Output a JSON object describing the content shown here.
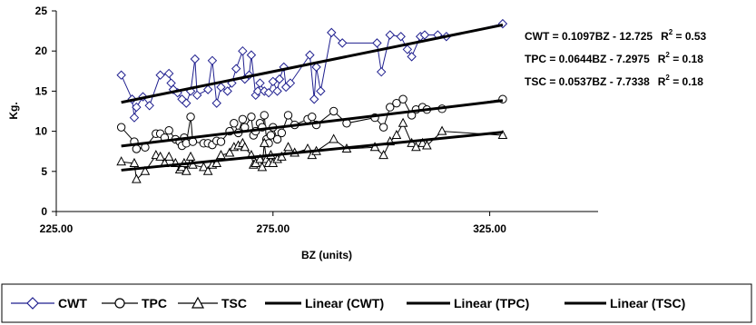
{
  "chart_data": {
    "type": "line",
    "xlabel": "BZ (units)",
    "ylabel": "Kg.",
    "xlim": [
      225,
      350
    ],
    "ylim": [
      0,
      25
    ],
    "x_ticks": [
      "225.00",
      "275.00",
      "325.00"
    ],
    "y_ticks": [
      "0",
      "5",
      "10",
      "15",
      "20",
      "25"
    ],
    "grid": false,
    "legend_position": "bottom",
    "series": [
      {
        "name": "CWT",
        "marker": "diamond",
        "color": "#1F1F8F",
        "points": [
          [
            240,
            17
          ],
          [
            242.5,
            14
          ],
          [
            243,
            11.7
          ],
          [
            243.5,
            13
          ],
          [
            245,
            14.3
          ],
          [
            246.5,
            13.2
          ],
          [
            249,
            17
          ],
          [
            251,
            17.2
          ],
          [
            251.5,
            16
          ],
          [
            252,
            15.2
          ],
          [
            253,
            14.8
          ],
          [
            254,
            14
          ],
          [
            255,
            13.5
          ],
          [
            256,
            15
          ],
          [
            257,
            19
          ],
          [
            257.5,
            14.5
          ],
          [
            260,
            15.2
          ],
          [
            261,
            18.8
          ],
          [
            262,
            13.5
          ],
          [
            263,
            15.5
          ],
          [
            264.5,
            15
          ],
          [
            265.5,
            16
          ],
          [
            266.5,
            17.8
          ],
          [
            268,
            20
          ],
          [
            268.5,
            16.5
          ],
          [
            269.5,
            17
          ],
          [
            270,
            19.5
          ],
          [
            271,
            14.5
          ],
          [
            271.5,
            15
          ],
          [
            272,
            16
          ],
          [
            273,
            15
          ],
          [
            274,
            14.8
          ],
          [
            275,
            16.2
          ],
          [
            276,
            15
          ],
          [
            276.5,
            16.5
          ],
          [
            277.5,
            18
          ],
          [
            278,
            15.5
          ],
          [
            279,
            16
          ],
          [
            283.5,
            19.5
          ],
          [
            284.5,
            14
          ],
          [
            285,
            18
          ],
          [
            286,
            15
          ],
          [
            288.5,
            22.3
          ],
          [
            291,
            21
          ],
          [
            299,
            21
          ],
          [
            300,
            17.4
          ],
          [
            302,
            22
          ],
          [
            304.5,
            21.8
          ],
          [
            306,
            20.2
          ],
          [
            307,
            19.3
          ],
          [
            309,
            21.8
          ],
          [
            310,
            22
          ],
          [
            313,
            22
          ],
          [
            315,
            21.8
          ],
          [
            328,
            23.4
          ]
        ]
      },
      {
        "name": "TPC",
        "marker": "circle",
        "color": "#000000",
        "points": [
          [
            240,
            10.5
          ],
          [
            243,
            8.7
          ],
          [
            243.5,
            7.8
          ],
          [
            245.5,
            8
          ],
          [
            248,
            9.7
          ],
          [
            249,
            9.7
          ],
          [
            250,
            9.2
          ],
          [
            251,
            10.1
          ],
          [
            252.5,
            9
          ],
          [
            253.5,
            8.7
          ],
          [
            254,
            8.2
          ],
          [
            254.5,
            9.2
          ],
          [
            255,
            8.5
          ],
          [
            256,
            11.8
          ],
          [
            256.5,
            8.7
          ],
          [
            259,
            8.5
          ],
          [
            260,
            8.5
          ],
          [
            261,
            8.3
          ],
          [
            262,
            8.8
          ],
          [
            263,
            8.7
          ],
          [
            265,
            10
          ],
          [
            266,
            11
          ],
          [
            267,
            9.8
          ],
          [
            268,
            11.5
          ],
          [
            268.5,
            10.5
          ],
          [
            270,
            11.8
          ],
          [
            270.5,
            9.5
          ],
          [
            271,
            10
          ],
          [
            272,
            11
          ],
          [
            272.5,
            10.5
          ],
          [
            273,
            12
          ],
          [
            273.5,
            9
          ],
          [
            274,
            8.5
          ],
          [
            274.5,
            9.5
          ],
          [
            275,
            10.5
          ],
          [
            276,
            9
          ],
          [
            277,
            9.8
          ],
          [
            278.5,
            12
          ],
          [
            280,
            10.8
          ],
          [
            283,
            11.5
          ],
          [
            284,
            11.8
          ],
          [
            285,
            10.8
          ],
          [
            289,
            12.5
          ],
          [
            292,
            11
          ],
          [
            298.5,
            11.7
          ],
          [
            300.5,
            10.5
          ],
          [
            302,
            13
          ],
          [
            303.5,
            13.5
          ],
          [
            305,
            14
          ],
          [
            307,
            12
          ],
          [
            308,
            12.7
          ],
          [
            309.5,
            13
          ],
          [
            310.5,
            12.7
          ],
          [
            314,
            12.8
          ],
          [
            328,
            14
          ]
        ]
      },
      {
        "name": "TSC",
        "marker": "triangle",
        "color": "#000000",
        "points": [
          [
            240,
            6.2
          ],
          [
            243,
            6
          ],
          [
            243.5,
            4
          ],
          [
            245.5,
            5
          ],
          [
            248,
            7
          ],
          [
            249,
            6.8
          ],
          [
            250,
            6
          ],
          [
            251,
            6.8
          ],
          [
            252.5,
            6
          ],
          [
            253.5,
            5.2
          ],
          [
            254,
            5.5
          ],
          [
            254.5,
            6
          ],
          [
            255,
            5
          ],
          [
            256,
            6.8
          ],
          [
            256.5,
            5.8
          ],
          [
            259,
            5.5
          ],
          [
            260,
            5
          ],
          [
            261,
            5.8
          ],
          [
            262,
            6
          ],
          [
            263,
            7
          ],
          [
            265,
            7.3
          ],
          [
            266,
            8
          ],
          [
            267,
            8.2
          ],
          [
            268,
            8.5
          ],
          [
            268.5,
            8
          ],
          [
            270,
            7
          ],
          [
            270.5,
            5.8
          ],
          [
            271,
            6
          ],
          [
            272,
            6.5
          ],
          [
            272.5,
            5.5
          ],
          [
            273,
            8.5
          ],
          [
            273.5,
            6.5
          ],
          [
            274,
            6
          ],
          [
            274.5,
            7
          ],
          [
            275,
            6
          ],
          [
            276,
            6.5
          ],
          [
            277,
            6.8
          ],
          [
            278.5,
            8
          ],
          [
            280,
            7.3
          ],
          [
            283,
            7.8
          ],
          [
            284,
            7
          ],
          [
            285,
            7.5
          ],
          [
            289,
            9
          ],
          [
            292,
            7.8
          ],
          [
            298.5,
            8
          ],
          [
            300.5,
            7
          ],
          [
            302,
            8.7
          ],
          [
            303.5,
            9.5
          ],
          [
            305,
            11
          ],
          [
            307,
            8.5
          ],
          [
            308,
            8
          ],
          [
            309.5,
            8.5
          ],
          [
            310.5,
            8.2
          ],
          [
            314,
            10
          ],
          [
            328,
            9.5
          ]
        ]
      }
    ],
    "trendlines": [
      {
        "name": "Linear (CWT)",
        "label": "CWT = 0.1097BZ - 12.725",
        "r2_label": "R",
        "r2_value": " = 0.53",
        "slope": 0.1097,
        "intercept": -12.725,
        "x_range": [
          240,
          328
        ]
      },
      {
        "name": "Linear (TPC)",
        "label": "TPC = 0.0644BZ - 7.2975",
        "r2_label": "R",
        "r2_value": " = 0.18",
        "slope": 0.0644,
        "intercept": -7.2975,
        "x_range": [
          240,
          328
        ]
      },
      {
        "name": "Linear (TSC)",
        "label": "TSC = 0.0537BZ - 7.7338",
        "r2_label": "R",
        "r2_value": " = 0.18",
        "slope": 0.0537,
        "intercept": -7.7338,
        "x_range": [
          240,
          328
        ]
      }
    ],
    "r2_superscript": "2"
  }
}
